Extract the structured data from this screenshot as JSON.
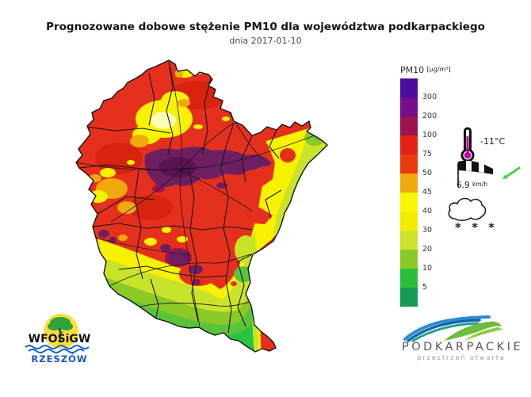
{
  "header": {
    "title": "Prognozowane dobowe stężenie PM10 dla województwa podkarpackiego",
    "date_line": "dnia 2017-01-10"
  },
  "legend": {
    "title": "PM10",
    "unit": "[µg/m³]",
    "segments": [
      {
        "color": "#4A0D9E",
        "tick": "300"
      },
      {
        "color": "#750E8C",
        "tick": "200"
      },
      {
        "color": "#9D1353",
        "tick": "100"
      },
      {
        "color": "#E32112",
        "tick": "75"
      },
      {
        "color": "#E93A10",
        "tick": "50"
      },
      {
        "color": "#F2A90B",
        "tick": "45"
      },
      {
        "color": "#FAF600",
        "tick": "40"
      },
      {
        "color": "#F4EC00",
        "tick": "30"
      },
      {
        "color": "#CFE32B",
        "tick": "20"
      },
      {
        "color": "#8BC926",
        "tick": "10"
      },
      {
        "color": "#2BBE3B",
        "tick": "5"
      },
      {
        "color": "#159B55",
        "tick": ""
      }
    ]
  },
  "weather": {
    "temperature": "-11°C",
    "wind_speed": "6.9",
    "wind_unit": "km/h",
    "snow": "* * *"
  },
  "map": {
    "palette": {
      "red": "#E5301D",
      "red2": "#D8230F",
      "maroon": "#9D1353",
      "purple": "#6E1F62",
      "purpledark": "#591353",
      "orange": "#F2A90B",
      "yellow": "#F8F100",
      "paleyellow": "#FDFBB4",
      "yellowgreen": "#C9E32B",
      "lightgreen": "#8BC926",
      "green": "#5BC33A",
      "brightgreen": "#2AC33F",
      "line": "#161616",
      "thermo": "#C800A6",
      "arrow": "#3BD23B",
      "sun": "#FFDE39",
      "tree": "#2FA33C",
      "trunk": "#1C6B2A",
      "wave": "#1867C8",
      "logoblue": "#2B8FD0",
      "logodeep": "#1565AE",
      "logoteal": "#23A089",
      "logogreen": "#6DBE3C",
      "logogreen2": "#8FCE3F"
    }
  },
  "footer_logos": {
    "wfosigw": {
      "name": "WFOŚiGW",
      "city": "RZESZÓW"
    },
    "podkarpackie": {
      "name": "PODKARPACKIE",
      "tagline": "przestrzeń otwarta"
    }
  }
}
